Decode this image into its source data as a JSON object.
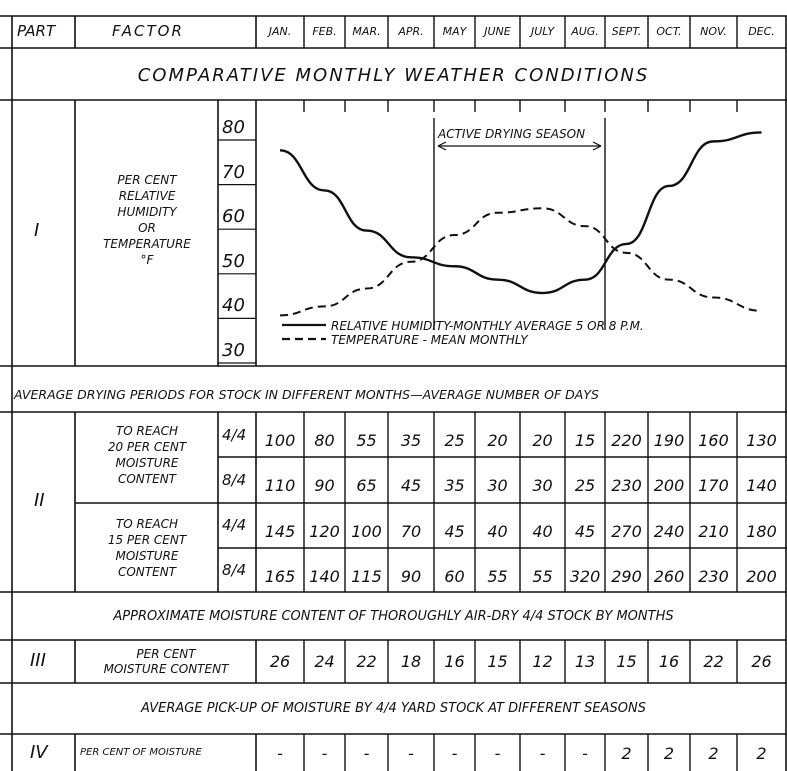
{
  "header": {
    "part": "PART",
    "factor": "FACTOR",
    "months": [
      "JAN.",
      "FEB.",
      "MAR.",
      "APR.",
      "MAY",
      "JUNE",
      "JULY",
      "AUG.",
      "SEPT.",
      "OCT.",
      "NOV.",
      "DEC."
    ]
  },
  "section1": {
    "title": "COMPARATIVE MONTHLY WEATHER CONDITIONS",
    "part": "I",
    "factor_lines": [
      "PER CENT",
      "RELATIVE",
      "HUMIDITY",
      "OR",
      "TEMPERATURE",
      "°F"
    ],
    "y_ticks": [
      "80",
      "70",
      "60",
      "50",
      "40",
      "30"
    ],
    "active_label": "ACTIVE DRYING SEASON",
    "legend": [
      "RELATIVE HUMIDITY-MONTHLY AVERAGE 5 OR 8 P.M.",
      "TEMPERATURE - MEAN MONTHLY"
    ]
  },
  "chart_data": {
    "type": "line",
    "x": [
      "JAN.",
      "FEB.",
      "MAR.",
      "APR.",
      "MAY",
      "JUNE",
      "JULY",
      "AUG.",
      "SEPT.",
      "OCT.",
      "NOV.",
      "DEC."
    ],
    "ylim": [
      30,
      85
    ],
    "y_ticks": [
      30,
      40,
      50,
      60,
      70,
      80
    ],
    "series": [
      {
        "name": "RELATIVE HUMIDITY-MONTHLY AVERAGE 5 OR 8 P.M.",
        "style": "solid",
        "values": [
          75,
          66,
          57,
          51,
          49,
          46,
          43,
          46,
          54,
          67,
          77,
          79
        ]
      },
      {
        "name": "TEMPERATURE - MEAN MONTHLY",
        "style": "dashed",
        "values": [
          38,
          40,
          44,
          50,
          56,
          61,
          62,
          58,
          52,
          46,
          42,
          39
        ]
      }
    ],
    "annotation": {
      "text": "ACTIVE DRYING SEASON",
      "from": "APR.",
      "to": "SEPT."
    }
  },
  "section2": {
    "title": "AVERAGE DRYING PERIODS FOR STOCK IN DIFFERENT MONTHS—AVERAGE NUMBER OF DAYS",
    "part": "II",
    "groups": [
      {
        "label_lines": [
          "TO REACH",
          "20 PER CENT",
          "MOISTURE",
          "CONTENT"
        ],
        "rows": [
          {
            "thickness": "4/4",
            "values": [
              "100",
              "80",
              "55",
              "35",
              "25",
              "20",
              "20",
              "15",
              "220",
              "190",
              "160",
              "130"
            ]
          },
          {
            "thickness": "8/4",
            "values": [
              "110",
              "90",
              "65",
              "45",
              "35",
              "30",
              "30",
              "25",
              "230",
              "200",
              "170",
              "140"
            ]
          }
        ]
      },
      {
        "label_lines": [
          "TO REACH",
          "15 PER CENT",
          "MOISTURE",
          "CONTENT"
        ],
        "rows": [
          {
            "thickness": "4/4",
            "values": [
              "145",
              "120",
              "100",
              "70",
              "45",
              "40",
              "40",
              "45",
              "270",
              "240",
              "210",
              "180"
            ]
          },
          {
            "thickness": "8/4",
            "values": [
              "165",
              "140",
              "115",
              "90",
              "60",
              "55",
              "55",
              "320",
              "290",
              "260",
              "230",
              "200"
            ]
          }
        ]
      }
    ]
  },
  "section3": {
    "title": "APPROXIMATE MOISTURE CONTENT OF THOROUGHLY AIR-DRY 4/4 STOCK BY MONTHS",
    "part": "III",
    "factor_lines": [
      "PER CENT",
      "MOISTURE CONTENT"
    ],
    "values": [
      "26",
      "24",
      "22",
      "18",
      "16",
      "15",
      "12",
      "13",
      "15",
      "16",
      "22",
      "26"
    ]
  },
  "section4": {
    "title": "AVERAGE PICK-UP OF MOISTURE BY 4/4 YARD STOCK AT DIFFERENT SEASONS",
    "part": "IV",
    "factor": "PER CENT OF MOISTURE",
    "values": [
      "-",
      "-",
      "-",
      "-",
      "-",
      "-",
      "-",
      "-",
      "2",
      "2",
      "2",
      "2"
    ]
  }
}
